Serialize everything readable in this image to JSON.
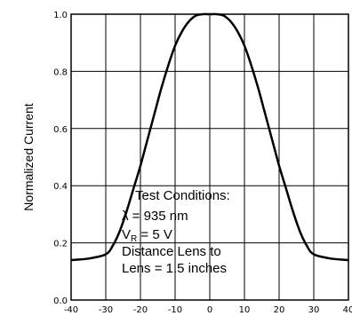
{
  "chart_data": {
    "type": "line",
    "title": "",
    "xlabel": "",
    "ylabel": "Normalized Current",
    "xlim": [
      -40,
      40
    ],
    "ylim": [
      0.0,
      1.0
    ],
    "grid": true,
    "x_ticks": [
      -40,
      -30,
      -20,
      -10,
      0,
      10,
      20,
      30,
      40
    ],
    "x_tick_labels": [
      "-40",
      "-30",
      "-20",
      "-10",
      "0",
      "10",
      "20",
      "30",
      "40"
    ],
    "y_ticks": [
      0.0,
      0.2,
      0.4,
      0.6,
      0.8,
      1.0
    ],
    "y_tick_labels": [
      "0.0",
      "0.2",
      "0.4",
      "0.6",
      "0.8",
      "1.0"
    ],
    "series": [
      {
        "x": [
          -40,
          -35,
          -30,
          -28,
          -26,
          -24,
          -22,
          -20,
          -18,
          -16,
          -14,
          -12,
          -10,
          -8,
          -6,
          -4,
          -2,
          0,
          2,
          4,
          6,
          8,
          10,
          12,
          14,
          16,
          18,
          20,
          22,
          24,
          26,
          28,
          30,
          35,
          40
        ],
        "y": [
          0.14,
          0.145,
          0.16,
          0.19,
          0.24,
          0.31,
          0.39,
          0.47,
          0.56,
          0.65,
          0.74,
          0.82,
          0.89,
          0.94,
          0.975,
          0.995,
          1.0,
          1.0,
          1.0,
          0.995,
          0.975,
          0.94,
          0.89,
          0.82,
          0.74,
          0.65,
          0.56,
          0.47,
          0.39,
          0.31,
          0.24,
          0.19,
          0.16,
          0.145,
          0.14
        ]
      }
    ],
    "annotation": {
      "line1": "Test Conditions:",
      "line2": "λ = 935 nm",
      "line3_main": "V",
      "line3_sub": "R",
      "line3_rest": " = 5 V",
      "line4": "Distance Lens to",
      "line5": "Lens = 1.5 inches"
    }
  }
}
